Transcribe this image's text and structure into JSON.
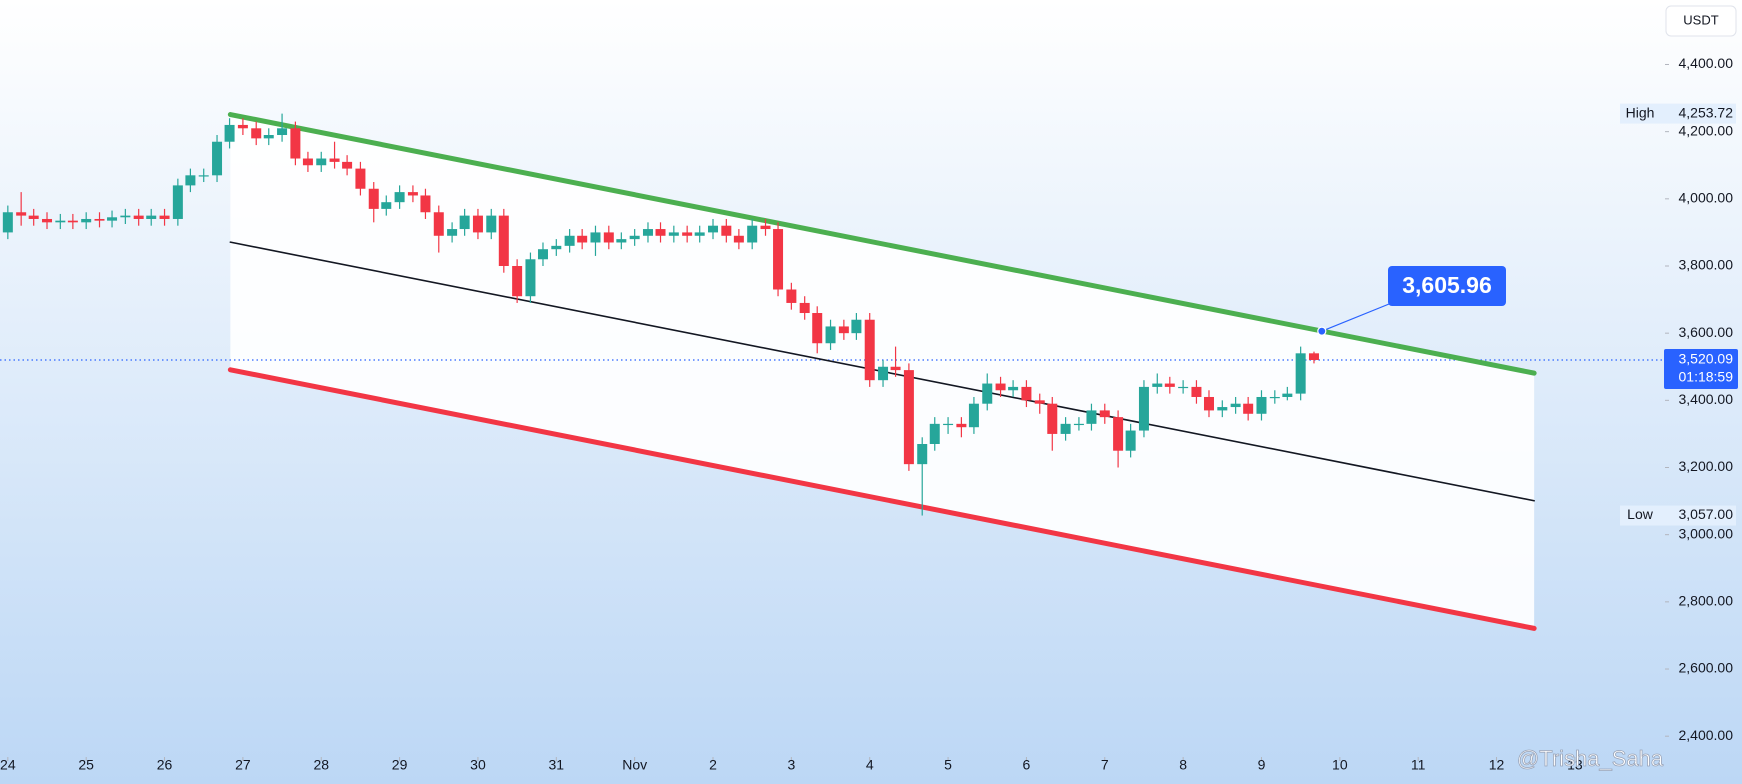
{
  "chart_data": {
    "type": "candlestick",
    "currency": "USDT",
    "watermark": "@Trisha_Saha",
    "up_color": "#26a69a",
    "down_color": "#f23645",
    "xlim": [
      -0.1,
      21.15
    ],
    "ylim": [
      2344,
      4592
    ],
    "xticks": [
      {
        "value": 0,
        "label": "24"
      },
      {
        "value": 1,
        "label": "25"
      },
      {
        "value": 2,
        "label": "26"
      },
      {
        "value": 3,
        "label": "27"
      },
      {
        "value": 4,
        "label": "28"
      },
      {
        "value": 5,
        "label": "29"
      },
      {
        "value": 6,
        "label": "30"
      },
      {
        "value": 7,
        "label": "31"
      },
      {
        "value": 8,
        "label": "Nov"
      },
      {
        "value": 9,
        "label": "2"
      },
      {
        "value": 10,
        "label": "3"
      },
      {
        "value": 11,
        "label": "4"
      },
      {
        "value": 12,
        "label": "5"
      },
      {
        "value": 13,
        "label": "6"
      },
      {
        "value": 14,
        "label": "7"
      },
      {
        "value": 15,
        "label": "8"
      },
      {
        "value": 16,
        "label": "9"
      },
      {
        "value": 17,
        "label": "10"
      },
      {
        "value": 18,
        "label": "11"
      },
      {
        "value": 19,
        "label": "12"
      },
      {
        "value": 20,
        "label": "13"
      }
    ],
    "yticks": [
      {
        "value": 2400,
        "label": "2,400.00"
      },
      {
        "value": 2600,
        "label": "2,600.00"
      },
      {
        "value": 2800,
        "label": "2,800.00"
      },
      {
        "value": 3000,
        "label": "3,000.00"
      },
      {
        "value": 3200,
        "label": "3,200.00"
      },
      {
        "value": 3400,
        "label": "3,400.00"
      },
      {
        "value": 3600,
        "label": "3,600.00"
      },
      {
        "value": 3800,
        "label": "3,800.00"
      },
      {
        "value": 4000,
        "label": "4,000.00"
      },
      {
        "value": 4200,
        "label": "4,200.00"
      },
      {
        "value": 4400,
        "label": "4,400.00"
      }
    ],
    "x": [
      0,
      0.17,
      0.33,
      0.5,
      0.67,
      0.83,
      1,
      1.17,
      1.33,
      1.5,
      1.67,
      1.83,
      2,
      2.17,
      2.33,
      2.5,
      2.67,
      2.83,
      3,
      3.17,
      3.33,
      3.5,
      3.67,
      3.83,
      4,
      4.17,
      4.33,
      4.5,
      4.67,
      4.83,
      5,
      5.17,
      5.33,
      5.5,
      5.67,
      5.83,
      6,
      6.17,
      6.33,
      6.5,
      6.67,
      6.83,
      7,
      7.17,
      7.33,
      7.5,
      7.67,
      7.83,
      8,
      8.17,
      8.33,
      8.5,
      8.67,
      8.83,
      9,
      9.17,
      9.33,
      9.5,
      9.67,
      9.83,
      10,
      10.17,
      10.33,
      10.5,
      10.67,
      10.83,
      11,
      11.17,
      11.33,
      11.5,
      11.67,
      11.83,
      12,
      12.17,
      12.33,
      12.5,
      12.67,
      12.83,
      13,
      13.17,
      13.33,
      13.5,
      13.67,
      13.83,
      14,
      14.17,
      14.33,
      14.5,
      14.67,
      14.83,
      15,
      15.17,
      15.33,
      15.5,
      15.67,
      15.83,
      16,
      16.17,
      16.33,
      16.5,
      16.67
    ],
    "open": [
      3900,
      3960,
      3950,
      3940,
      3930,
      3935,
      3930,
      3940,
      3935,
      3945,
      3950,
      3940,
      3950,
      3940,
      4040,
      4070,
      4070,
      4170,
      4220,
      4210,
      4180,
      4190,
      4210,
      4120,
      4100,
      4120,
      4110,
      4090,
      4030,
      3970,
      3990,
      4020,
      4010,
      3960,
      3890,
      3910,
      3950,
      3900,
      3950,
      3800,
      3710,
      3820,
      3850,
      3860,
      3890,
      3870,
      3900,
      3870,
      3880,
      3890,
      3910,
      3890,
      3900,
      3890,
      3900,
      3920,
      3890,
      3870,
      3920,
      3910,
      3730,
      3690,
      3660,
      3570,
      3620,
      3600,
      3640,
      3460,
      3500,
      3490,
      3210,
      3270,
      3330,
      3330,
      3320,
      3390,
      3450,
      3430,
      3440,
      3400,
      3390,
      3300,
      3330,
      3330,
      3370,
      3350,
      3250,
      3310,
      3440,
      3450,
      3440,
      3440,
      3410,
      3370,
      3380,
      3390,
      3360,
      3410,
      3410,
      3420,
      3540
    ],
    "high": [
      3980,
      4020,
      3970,
      3960,
      3955,
      3955,
      3960,
      3960,
      3965,
      3970,
      3970,
      3970,
      3970,
      4060,
      4090,
      4090,
      4190,
      4240,
      4240,
      4230,
      4210,
      4253.72,
      4230,
      4140,
      4140,
      4170,
      4130,
      4110,
      4050,
      4010,
      4040,
      4040,
      4030,
      3980,
      3930,
      3970,
      3970,
      3970,
      3970,
      3820,
      3840,
      3870,
      3880,
      3910,
      3910,
      3920,
      3920,
      3900,
      3910,
      3930,
      3930,
      3920,
      3920,
      3920,
      3940,
      3940,
      3910,
      3940,
      3940,
      3930,
      3750,
      3710,
      3680,
      3640,
      3640,
      3660,
      3660,
      3520,
      3560,
      3510,
      3290,
      3350,
      3350,
      3350,
      3410,
      3480,
      3470,
      3460,
      3460,
      3420,
      3410,
      3350,
      3350,
      3390,
      3390,
      3370,
      3330,
      3460,
      3480,
      3470,
      3460,
      3460,
      3430,
      3400,
      3410,
      3410,
      3430,
      3430,
      3440,
      3560,
      3545
    ],
    "low": [
      3880,
      3920,
      3920,
      3910,
      3910,
      3910,
      3910,
      3915,
      3915,
      3925,
      3920,
      3920,
      3920,
      3920,
      4020,
      4050,
      4050,
      4150,
      4190,
      4160,
      4160,
      4170,
      4100,
      4080,
      4080,
      4090,
      4070,
      4010,
      3930,
      3950,
      3970,
      3990,
      3940,
      3840,
      3870,
      3890,
      3880,
      3880,
      3780,
      3690,
      3690,
      3800,
      3830,
      3840,
      3850,
      3830,
      3850,
      3850,
      3860,
      3870,
      3870,
      3870,
      3870,
      3870,
      3880,
      3870,
      3850,
      3850,
      3890,
      3710,
      3670,
      3640,
      3540,
      3550,
      3580,
      3580,
      3440,
      3440,
      3470,
      3190,
      3057,
      3250,
      3300,
      3290,
      3300,
      3370,
      3410,
      3410,
      3380,
      3360,
      3250,
      3280,
      3310,
      3310,
      3330,
      3200,
      3230,
      3290,
      3420,
      3420,
      3420,
      3390,
      3350,
      3350,
      3360,
      3340,
      3340,
      3390,
      3400,
      3400,
      3510
    ],
    "close": [
      3960,
      3950,
      3940,
      3930,
      3935,
      3930,
      3940,
      3935,
      3945,
      3950,
      3940,
      3950,
      3940,
      4040,
      4070,
      4070,
      4170,
      4220,
      4210,
      4180,
      4190,
      4210,
      4120,
      4100,
      4120,
      4110,
      4090,
      4030,
      3970,
      3990,
      4020,
      4010,
      3960,
      3890,
      3910,
      3950,
      3900,
      3950,
      3800,
      3710,
      3820,
      3850,
      3860,
      3890,
      3870,
      3900,
      3870,
      3880,
      3890,
      3910,
      3890,
      3900,
      3890,
      3900,
      3920,
      3890,
      3870,
      3920,
      3910,
      3730,
      3690,
      3660,
      3570,
      3620,
      3600,
      3640,
      3460,
      3500,
      3490,
      3210,
      3270,
      3330,
      3330,
      3320,
      3390,
      3450,
      3430,
      3440,
      3400,
      3390,
      3300,
      3330,
      3330,
      3370,
      3350,
      3250,
      3310,
      3440,
      3450,
      3440,
      3440,
      3410,
      3370,
      3380,
      3390,
      3360,
      3410,
      3410,
      3420,
      3540,
      3520.09
    ],
    "channel": [
      {
        "x": [
          2.84,
          19.48
        ],
        "y": [
          4251,
          3481
        ],
        "color": "#4caf50",
        "width": 5
      },
      {
        "x": [
          2.84,
          19.48
        ],
        "y": [
          3871,
          3101
        ],
        "color": "#131722",
        "width": 1.6
      },
      {
        "x": [
          2.84,
          19.48
        ],
        "y": [
          3491,
          2721
        ],
        "color": "#f23645",
        "width": 5
      }
    ],
    "high_marker": {
      "label": "High",
      "value": 4253.72,
      "value_label": "4,253.72"
    },
    "low_marker": {
      "label": "Low",
      "value": 3057,
      "value_label": "3,057.00"
    },
    "last_price": {
      "value": 3520.09,
      "value_label": "3,520.09",
      "countdown": "01:18:59"
    },
    "annotation": {
      "x": 16.77,
      "y": 3605.96,
      "value_label": "3,605.96"
    }
  }
}
